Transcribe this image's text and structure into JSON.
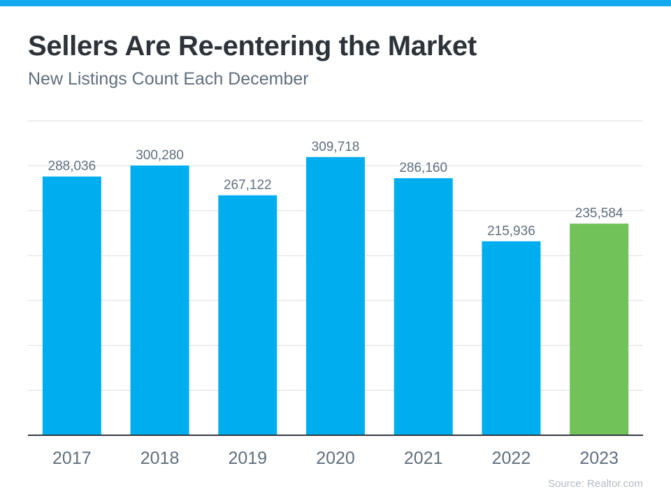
{
  "colors": {
    "accent": "#14aaee",
    "bar": "#00aeef",
    "highlight": "#72c25a",
    "text": "#5f6e7d",
    "grid": "#d9dde2",
    "axis": "#333a40"
  },
  "chart_data": {
    "type": "bar",
    "title": "Sellers Are Re-entering the Market",
    "subtitle": "New Listings Count Each December",
    "categories": [
      "2017",
      "2018",
      "2019",
      "2020",
      "2021",
      "2022",
      "2023"
    ],
    "values": [
      288036,
      300280,
      267122,
      309718,
      286160,
      215936,
      235584
    ],
    "data_labels": [
      "288,036",
      "300,280",
      "267,122",
      "309,718",
      "286,160",
      "215,936",
      "235,584"
    ],
    "highlighted": [
      "2023"
    ],
    "ylim": [
      0,
      350000
    ],
    "grid": true,
    "gridline_step": 50000,
    "xlabel": "",
    "ylabel": "",
    "source": "Source: Realtor.com"
  }
}
